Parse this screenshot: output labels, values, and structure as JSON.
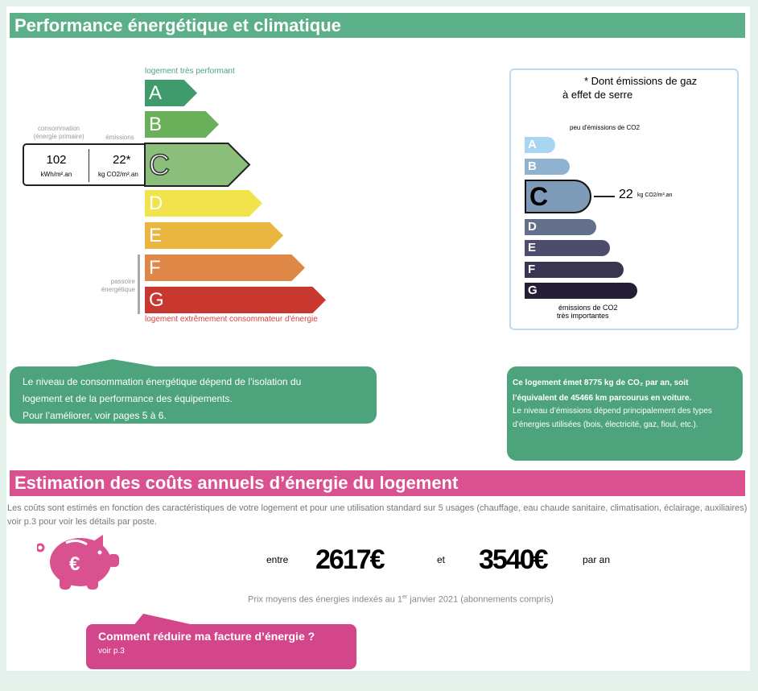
{
  "energy_section": {
    "title": "Performance énergétique et climatique",
    "top_label": "logement très performant",
    "bottom_label": "logement extrêmement consommateur d'énergie",
    "consumption_label": "consommation\n(énergie primaire)",
    "emissions_label": "émissions",
    "consumption_value": "102",
    "consumption_unit": "kWh/m².an",
    "emissions_value": "22*",
    "emissions_unit": "kg CO2/m².an",
    "passoire_label": "passoire énergétique",
    "current_class": "C",
    "classes": [
      {
        "letter": "A",
        "color": "#3f9a6c"
      },
      {
        "letter": "B",
        "color": "#6aaf5a"
      },
      {
        "letter": "C",
        "color": "#8bbd7b"
      },
      {
        "letter": "D",
        "color": "#f1e34c"
      },
      {
        "letter": "E",
        "color": "#e9b63f"
      },
      {
        "letter": "F",
        "color": "#de8746"
      },
      {
        "letter": "G",
        "color": "#c9382f"
      }
    ]
  },
  "ghg_box": {
    "title": "* Dont émissions de gaz",
    "title2": "à effet de serre",
    "top_label": "peu d'émissions de CO2",
    "bottom_label": "émissions de CO2",
    "bottom_label2": "très importantes",
    "value": "22",
    "unit": "kg CO2/m².an",
    "current_class": "C",
    "classes": [
      {
        "letter": "A",
        "color": "#a8d6f2"
      },
      {
        "letter": "B",
        "color": "#8fb2d0"
      },
      {
        "letter": "C",
        "color": "#7d9ab8"
      },
      {
        "letter": "D",
        "color": "#646f8c"
      },
      {
        "letter": "E",
        "color": "#4c4d6e"
      },
      {
        "letter": "F",
        "color": "#3b3552"
      },
      {
        "letter": "G",
        "color": "#261d36"
      }
    ]
  },
  "bubble_left": {
    "line1": "Le niveau de consommation énergétique dépend de l’isolation du",
    "line2": "logement et de la performance des équipements.",
    "line3": "Pour l’améliorer, voir pages 5 à 6."
  },
  "bubble_right": {
    "bold1": "Ce logement émet 8775 kg de CO₂ par an, soit",
    "bold2": "l’équivalent de 45466 km parcourus en voiture.",
    "text": "Le niveau d’émissions dépend principalement des types d’énergies utilisées (bois, électricité, gaz, fioul, etc.)."
  },
  "cost_section": {
    "title": "Estimation des coûts annuels d’énergie du logement",
    "description": "Les coûts sont estimés en fonction des caractéristiques de votre logement et pour une utilisation standard sur 5 usages (chauffage, eau chaude sanitaire, climatisation, éclairage, auxiliaires) voir p.3 pour voir les détails par poste.",
    "between": "entre",
    "min": "2617€",
    "and": "et",
    "max": "3540€",
    "per_year": "par an",
    "prices_note_a": "Prix moyens des énergies indexés au 1",
    "prices_note_sup": "er",
    "prices_note_b": " janvier 2021 (abonnements compris)",
    "tip_title": "Comment réduire ma facture d’énergie ?",
    "tip_link": "voir p.3"
  },
  "colors": {
    "green": "#5bb08a",
    "pink": "#d9528f",
    "bubble_green": "#4da37c",
    "tip_pink": "#d4468a"
  }
}
